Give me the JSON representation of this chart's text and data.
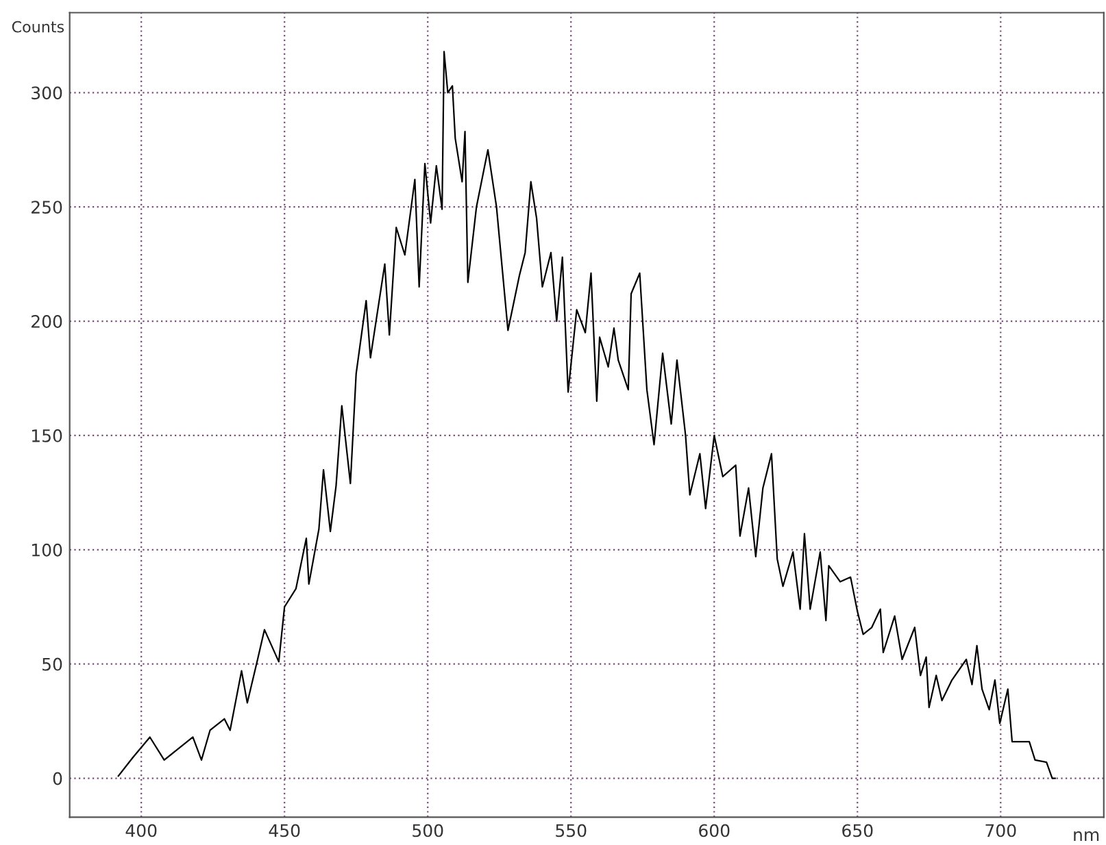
{
  "chart_data": {
    "type": "line",
    "xlabel": "nm",
    "ylabel": "Counts",
    "xlim": [
      375,
      736
    ],
    "ylim": [
      -17,
      335
    ],
    "xticks": [
      400,
      450,
      500,
      550,
      600,
      650,
      700
    ],
    "yticks": [
      0,
      50,
      100,
      150,
      200,
      250,
      300
    ],
    "grid": true,
    "marker": "none",
    "line_style": "solid",
    "series": [
      {
        "color": "#000000",
        "x": [
          392,
          397,
          403,
          408,
          413,
          418,
          421,
          424,
          429,
          431,
          435,
          437,
          440.6,
          443,
          448,
          450,
          454,
          457.6,
          458.5,
          462,
          463.6,
          466,
          468,
          470,
          473,
          475,
          478.5,
          480,
          485,
          486.6,
          489,
          492,
          495.5,
          497,
          499,
          501,
          503,
          505,
          505.7,
          507,
          508.6,
          509.6,
          512,
          513,
          514,
          517,
          521,
          524,
          528,
          532,
          534,
          536,
          538,
          540,
          543,
          545,
          547,
          549,
          552,
          555,
          557,
          559,
          560,
          563,
          565,
          566.5,
          570,
          571,
          574,
          576.5,
          579,
          582,
          585,
          587,
          590,
          591.5,
          595,
          597,
          600,
          603,
          607.5,
          609,
          612,
          614.5,
          617,
          620,
          622,
          624,
          627.5,
          630,
          631.5,
          633.5,
          637,
          639,
          640,
          644,
          647.6,
          650,
          652,
          655,
          658,
          659,
          663,
          665.6,
          670,
          672,
          674,
          675,
          677.5,
          679.5,
          683,
          688,
          690,
          691.7,
          693.5,
          696,
          698,
          699.7,
          702.5,
          704,
          707,
          710,
          712,
          716,
          718,
          719
        ],
        "values": [
          1,
          9,
          18,
          8,
          13,
          18,
          8,
          21,
          26,
          21,
          47,
          33,
          52,
          65,
          51,
          75,
          83,
          105,
          85,
          109,
          135,
          108,
          128,
          163,
          129,
          177,
          209,
          184,
          225,
          194,
          241,
          229,
          262,
          215,
          269,
          243,
          268,
          249,
          318,
          300,
          303,
          280,
          261,
          283,
          217,
          250,
          275,
          250,
          196,
          220,
          230,
          261,
          245,
          215,
          230,
          200,
          228,
          169,
          205,
          195,
          221,
          165,
          193,
          180,
          197,
          183,
          170,
          212,
          221,
          170,
          146,
          186,
          155,
          183,
          150,
          124,
          142,
          118,
          150,
          132,
          137,
          106,
          127,
          97,
          127,
          142,
          96,
          84,
          99,
          74,
          107,
          74,
          99,
          69,
          93,
          86,
          88,
          73,
          63,
          66,
          74,
          55,
          71,
          52,
          66,
          45,
          53,
          31,
          45,
          34,
          43,
          52,
          41,
          58,
          39,
          30,
          43,
          24,
          39,
          16,
          16,
          16,
          8,
          7,
          0,
          0
        ]
      }
    ]
  }
}
